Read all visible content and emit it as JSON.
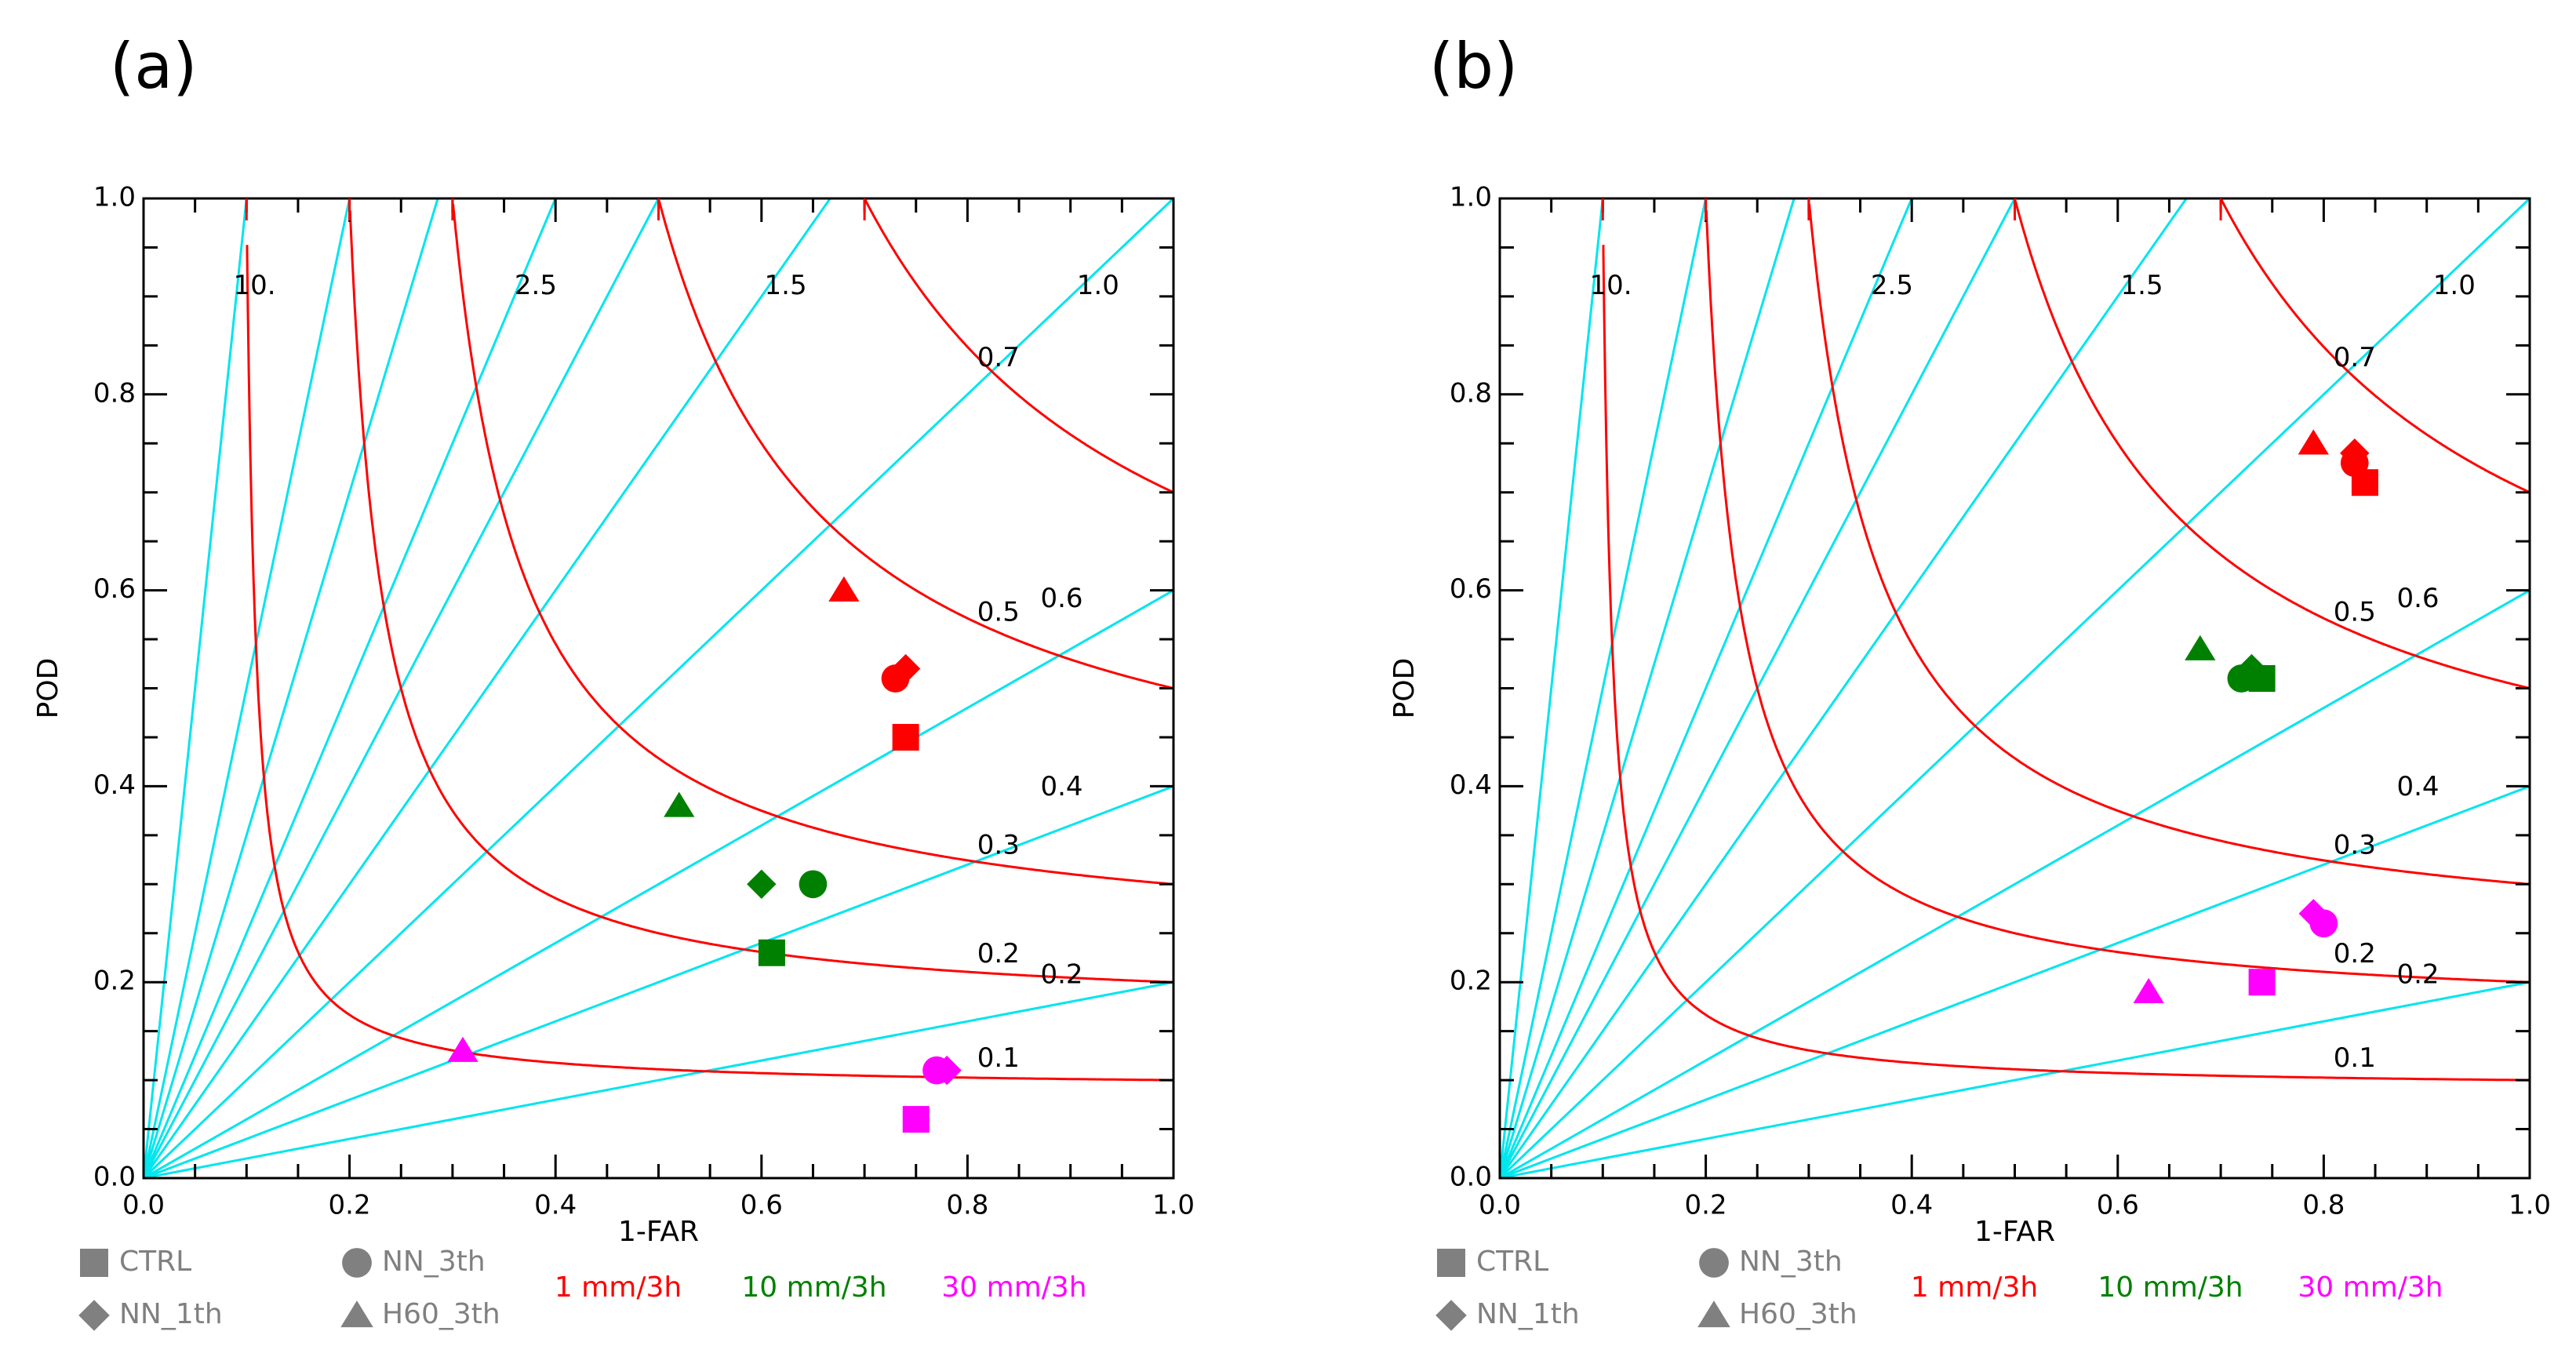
{
  "panels": [
    {
      "label": "(a)",
      "xlabel": "1-FAR",
      "ylabel": "POD",
      "xticks": [
        "0.0",
        "0.2",
        "0.4",
        "0.6",
        "0.8",
        "1.0"
      ],
      "yticks": [
        "0.0",
        "0.2",
        "0.4",
        "0.6",
        "0.8",
        "1.0"
      ]
    },
    {
      "label": "(b)",
      "xlabel": "1-FAR",
      "ylabel": "POD",
      "xticks": [
        "0.0",
        "0.2",
        "0.4",
        "0.6",
        "0.8",
        "1.0"
      ],
      "yticks": [
        "0.0",
        "0.2",
        "0.4",
        "0.6",
        "0.8",
        "1.0"
      ]
    }
  ],
  "legend": {
    "markers": [
      {
        "label": "CTRL",
        "shape": "square"
      },
      {
        "label": "NN_3th",
        "shape": "circle"
      },
      {
        "label": "NN_1th",
        "shape": "diamond"
      },
      {
        "label": "H60_3th",
        "shape": "triangle"
      }
    ],
    "thresholds": [
      {
        "label": "1 mm/3h",
        "color": "#ff0000"
      },
      {
        "label": "10 mm/3h",
        "color": "#008000"
      },
      {
        "label": "30 mm/3h",
        "color": "#ff00ff"
      }
    ]
  },
  "colors": {
    "bias_lines": "#00e5ee",
    "csi_curves": "#ff0000",
    "axis": "#000000",
    "legend_marker": "#808080"
  },
  "chart_data": [
    {
      "type": "scatter",
      "title": "(a)",
      "xlabel": "1-FAR",
      "ylabel": "POD",
      "xlim": [
        0.0,
        1.0
      ],
      "ylim": [
        0.0,
        1.0
      ],
      "grid": false,
      "bias_lines": [
        10.0,
        5.0,
        3.5,
        2.5,
        2.0,
        1.5,
        1.0,
        0.6,
        0.4,
        0.2
      ],
      "bias_labels": [
        {
          "text": "10.",
          "bias": 10.0
        },
        {
          "text": "2.5",
          "bias": 2.5
        },
        {
          "text": "1.5",
          "bias": 1.5
        },
        {
          "text": "1.0",
          "bias": 1.0
        },
        {
          "text": "0.6",
          "bias": 0.6
        },
        {
          "text": "0.4",
          "bias": 0.4
        },
        {
          "text": "0.2",
          "bias": 0.2
        }
      ],
      "csi_curves": [
        0.1,
        0.2,
        0.3,
        0.5,
        0.7
      ],
      "csi_labels": [
        {
          "text": "0.7",
          "csi": 0.7
        },
        {
          "text": "0.5",
          "csi": 0.5
        },
        {
          "text": "0.3",
          "csi": 0.3
        },
        {
          "text": "0.2",
          "csi": 0.2
        },
        {
          "text": "0.1",
          "csi": 0.1
        }
      ],
      "points": [
        {
          "experiment": "CTRL",
          "threshold": "1 mm/3h",
          "x": 0.74,
          "y": 0.45
        },
        {
          "experiment": "NN_3th",
          "threshold": "1 mm/3h",
          "x": 0.73,
          "y": 0.51
        },
        {
          "experiment": "NN_1th",
          "threshold": "1 mm/3h",
          "x": 0.74,
          "y": 0.52
        },
        {
          "experiment": "H60_3th",
          "threshold": "1 mm/3h",
          "x": 0.68,
          "y": 0.6
        },
        {
          "experiment": "CTRL",
          "threshold": "10 mm/3h",
          "x": 0.61,
          "y": 0.23
        },
        {
          "experiment": "NN_3th",
          "threshold": "10 mm/3h",
          "x": 0.65,
          "y": 0.3
        },
        {
          "experiment": "NN_1th",
          "threshold": "10 mm/3h",
          "x": 0.6,
          "y": 0.3
        },
        {
          "experiment": "H60_3th",
          "threshold": "10 mm/3h",
          "x": 0.52,
          "y": 0.38
        },
        {
          "experiment": "CTRL",
          "threshold": "30 mm/3h",
          "x": 0.75,
          "y": 0.06
        },
        {
          "experiment": "NN_3th",
          "threshold": "30 mm/3h",
          "x": 0.77,
          "y": 0.11
        },
        {
          "experiment": "NN_1th",
          "threshold": "30 mm/3h",
          "x": 0.78,
          "y": 0.11
        },
        {
          "experiment": "H60_3th",
          "threshold": "30 mm/3h",
          "x": 0.31,
          "y": 0.13
        }
      ]
    },
    {
      "type": "scatter",
      "title": "(b)",
      "xlabel": "1-FAR",
      "ylabel": "POD",
      "xlim": [
        0.0,
        1.0
      ],
      "ylim": [
        0.0,
        1.0
      ],
      "grid": false,
      "bias_lines": [
        10.0,
        5.0,
        3.5,
        2.5,
        2.0,
        1.5,
        1.0,
        0.6,
        0.4,
        0.2
      ],
      "bias_labels": [
        {
          "text": "10.",
          "bias": 10.0
        },
        {
          "text": "2.5",
          "bias": 2.5
        },
        {
          "text": "1.5",
          "bias": 1.5
        },
        {
          "text": "1.0",
          "bias": 1.0
        },
        {
          "text": "0.6",
          "bias": 0.6
        },
        {
          "text": "0.4",
          "bias": 0.4
        },
        {
          "text": "0.2",
          "bias": 0.2
        }
      ],
      "csi_curves": [
        0.1,
        0.2,
        0.3,
        0.5,
        0.7
      ],
      "csi_labels": [
        {
          "text": "0.7",
          "csi": 0.7
        },
        {
          "text": "0.5",
          "csi": 0.5
        },
        {
          "text": "0.3",
          "csi": 0.3
        },
        {
          "text": "0.2",
          "csi": 0.2
        },
        {
          "text": "0.1",
          "csi": 0.1
        }
      ],
      "points": [
        {
          "experiment": "CTRL",
          "threshold": "1 mm/3h",
          "x": 0.84,
          "y": 0.71
        },
        {
          "experiment": "NN_3th",
          "threshold": "1 mm/3h",
          "x": 0.83,
          "y": 0.73
        },
        {
          "experiment": "NN_1th",
          "threshold": "1 mm/3h",
          "x": 0.83,
          "y": 0.74
        },
        {
          "experiment": "H60_3th",
          "threshold": "1 mm/3h",
          "x": 0.79,
          "y": 0.75
        },
        {
          "experiment": "CTRL",
          "threshold": "10 mm/3h",
          "x": 0.74,
          "y": 0.51
        },
        {
          "experiment": "NN_3th",
          "threshold": "10 mm/3h",
          "x": 0.72,
          "y": 0.51
        },
        {
          "experiment": "NN_1th",
          "threshold": "10 mm/3h",
          "x": 0.73,
          "y": 0.52
        },
        {
          "experiment": "H60_3th",
          "threshold": "10 mm/3h",
          "x": 0.68,
          "y": 0.54
        },
        {
          "experiment": "CTRL",
          "threshold": "30 mm/3h",
          "x": 0.74,
          "y": 0.2
        },
        {
          "experiment": "NN_3th",
          "threshold": "30 mm/3h",
          "x": 0.8,
          "y": 0.26
        },
        {
          "experiment": "NN_1th",
          "threshold": "30 mm/3h",
          "x": 0.79,
          "y": 0.27
        },
        {
          "experiment": "H60_3th",
          "threshold": "30 mm/3h",
          "x": 0.63,
          "y": 0.19
        }
      ]
    }
  ]
}
